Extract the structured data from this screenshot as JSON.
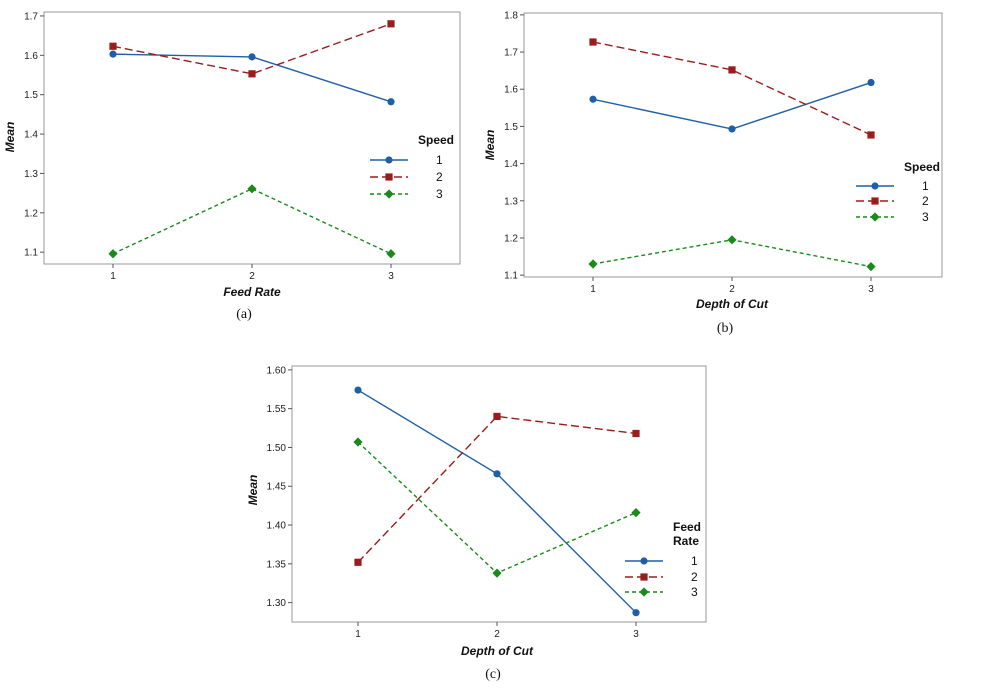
{
  "colors": {
    "series1": "#1f5fa8",
    "series2": "#9b1c1c",
    "series3": "#1a8a1a",
    "frame": "#999999",
    "caption_b": "#3d5a80"
  },
  "chart_data": [
    {
      "type": "line",
      "caption": "(a)",
      "xlabel": "Feed Rate",
      "ylabel": "Mean",
      "x": [
        "1",
        "2",
        "3"
      ],
      "yticks": [
        "1.1",
        "1.2",
        "1.3",
        "1.4",
        "1.5",
        "1.6",
        "1.7"
      ],
      "ylim": [
        1.07,
        1.71
      ],
      "legend_title": [
        "Speed"
      ],
      "legend_placement": "right",
      "grid": false,
      "series": [
        {
          "name": "1",
          "values": [
            1.603,
            1.596,
            1.482
          ]
        },
        {
          "name": "2",
          "values": [
            1.623,
            1.553,
            1.68
          ]
        },
        {
          "name": "3",
          "values": [
            1.096,
            1.261,
            1.096
          ]
        }
      ]
    },
    {
      "type": "line",
      "caption": "(b)",
      "xlabel": "Depth of Cut",
      "ylabel": "Mean",
      "x": [
        "1",
        "2",
        "3"
      ],
      "yticks": [
        "1.1",
        "1.2",
        "1.3",
        "1.4",
        "1.5",
        "1.6",
        "1.7",
        "1.8"
      ],
      "ylim": [
        1.095,
        1.805
      ],
      "legend_title": [
        "Speed"
      ],
      "legend_placement": "right",
      "grid": false,
      "series": [
        {
          "name": "1",
          "values": [
            1.573,
            1.493,
            1.618
          ]
        },
        {
          "name": "2",
          "values": [
            1.727,
            1.652,
            1.477
          ]
        },
        {
          "name": "3",
          "values": [
            1.13,
            1.195,
            1.123
          ]
        }
      ]
    },
    {
      "type": "line",
      "caption": "(c)",
      "xlabel": "Depth of Cut",
      "ylabel": "Mean",
      "x": [
        "1",
        "2",
        "3"
      ],
      "yticks": [
        "1.30",
        "1.35",
        "1.40",
        "1.45",
        "1.50",
        "1.55",
        "1.60"
      ],
      "ylim": [
        1.275,
        1.605
      ],
      "legend_title": [
        "Feed",
        "Rate"
      ],
      "legend_placement": "right",
      "grid": false,
      "series": [
        {
          "name": "1",
          "values": [
            1.574,
            1.466,
            1.287
          ]
        },
        {
          "name": "2",
          "values": [
            1.352,
            1.54,
            1.518
          ]
        },
        {
          "name": "3",
          "values": [
            1.507,
            1.338,
            1.416
          ]
        }
      ]
    }
  ]
}
